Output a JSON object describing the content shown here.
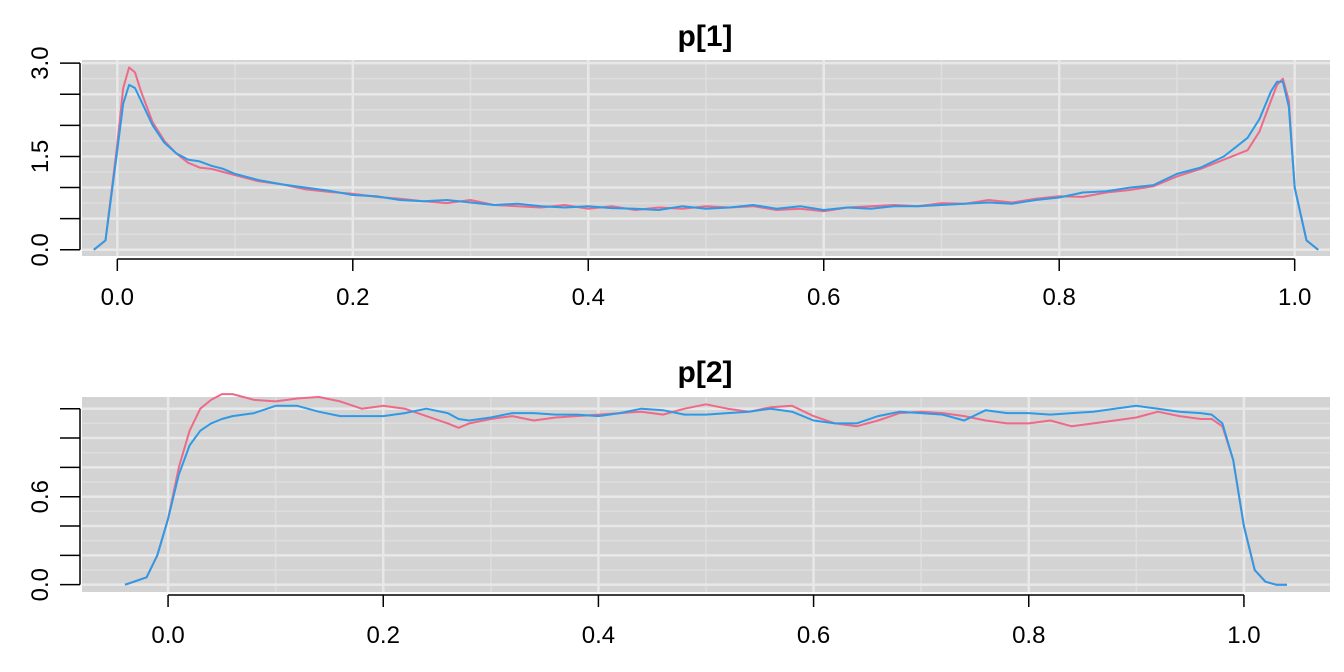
{
  "colors": {
    "panel_background": "#d3d3d3",
    "grid_major": "#e8e8e8",
    "grid_minor": "#dedede",
    "chain1": "#ee6a88",
    "chain2": "#2e9ae6"
  },
  "chart_data": [
    {
      "type": "line",
      "title": "p[1]",
      "xlabel": "",
      "ylabel": "",
      "xlim": [
        -0.03,
        1.03
      ],
      "ylim": [
        -0.1,
        3.05
      ],
      "x_ticks": [
        0.0,
        0.2,
        0.4,
        0.6,
        0.8,
        1.0
      ],
      "x_tick_labels": [
        "0.0",
        "0.2",
        "0.4",
        "0.6",
        "0.8",
        "1.0"
      ],
      "y_ticks": [
        0.0,
        0.5,
        1.0,
        1.5,
        2.0,
        2.5,
        3.0
      ],
      "y_tick_labels": [
        "0.0",
        "",
        "",
        "1.5",
        "",
        "",
        "3.0"
      ],
      "grid": true,
      "series": [
        {
          "color": "#ee6a88",
          "x": [
            -0.02,
            -0.01,
            0.0,
            0.005,
            0.01,
            0.015,
            0.02,
            0.03,
            0.04,
            0.05,
            0.06,
            0.07,
            0.08,
            0.09,
            0.1,
            0.12,
            0.14,
            0.16,
            0.18,
            0.2,
            0.22,
            0.24,
            0.26,
            0.28,
            0.3,
            0.32,
            0.34,
            0.36,
            0.38,
            0.4,
            0.42,
            0.44,
            0.46,
            0.48,
            0.5,
            0.52,
            0.54,
            0.56,
            0.58,
            0.6,
            0.62,
            0.64,
            0.66,
            0.68,
            0.7,
            0.72,
            0.74,
            0.76,
            0.78,
            0.8,
            0.82,
            0.84,
            0.86,
            0.88,
            0.9,
            0.92,
            0.94,
            0.96,
            0.97,
            0.98,
            0.985,
            0.99,
            0.995,
            1.0,
            1.01,
            1.02
          ],
          "y": [
            0.0,
            0.15,
            1.7,
            2.6,
            2.93,
            2.85,
            2.55,
            2.05,
            1.75,
            1.55,
            1.4,
            1.32,
            1.3,
            1.25,
            1.2,
            1.1,
            1.05,
            0.97,
            0.93,
            0.9,
            0.85,
            0.82,
            0.78,
            0.75,
            0.8,
            0.72,
            0.7,
            0.68,
            0.72,
            0.66,
            0.7,
            0.64,
            0.68,
            0.66,
            0.7,
            0.68,
            0.7,
            0.64,
            0.66,
            0.62,
            0.68,
            0.7,
            0.72,
            0.7,
            0.75,
            0.74,
            0.8,
            0.76,
            0.82,
            0.86,
            0.85,
            0.92,
            0.96,
            1.02,
            1.18,
            1.3,
            1.45,
            1.6,
            1.9,
            2.4,
            2.65,
            2.75,
            2.4,
            1.0,
            0.15,
            0.0
          ]
        },
        {
          "color": "#2e9ae6",
          "x": [
            -0.02,
            -0.01,
            0.0,
            0.005,
            0.01,
            0.015,
            0.02,
            0.03,
            0.04,
            0.05,
            0.06,
            0.07,
            0.08,
            0.09,
            0.1,
            0.12,
            0.14,
            0.16,
            0.18,
            0.2,
            0.22,
            0.24,
            0.26,
            0.28,
            0.3,
            0.32,
            0.34,
            0.36,
            0.38,
            0.4,
            0.42,
            0.44,
            0.46,
            0.48,
            0.5,
            0.52,
            0.54,
            0.56,
            0.58,
            0.6,
            0.62,
            0.64,
            0.66,
            0.68,
            0.7,
            0.72,
            0.74,
            0.76,
            0.78,
            0.8,
            0.82,
            0.84,
            0.86,
            0.88,
            0.9,
            0.92,
            0.94,
            0.96,
            0.97,
            0.98,
            0.985,
            0.99,
            0.995,
            1.0,
            1.01,
            1.02
          ],
          "y": [
            0.0,
            0.15,
            1.6,
            2.35,
            2.65,
            2.6,
            2.4,
            2.0,
            1.72,
            1.55,
            1.45,
            1.42,
            1.35,
            1.3,
            1.22,
            1.12,
            1.05,
            1.0,
            0.95,
            0.88,
            0.86,
            0.8,
            0.78,
            0.8,
            0.76,
            0.72,
            0.74,
            0.7,
            0.68,
            0.7,
            0.67,
            0.66,
            0.64,
            0.7,
            0.66,
            0.68,
            0.72,
            0.66,
            0.7,
            0.64,
            0.68,
            0.66,
            0.7,
            0.7,
            0.72,
            0.74,
            0.76,
            0.74,
            0.8,
            0.84,
            0.92,
            0.94,
            1.0,
            1.04,
            1.22,
            1.32,
            1.5,
            1.8,
            2.1,
            2.55,
            2.7,
            2.7,
            2.3,
            1.0,
            0.15,
            0.0
          ]
        }
      ]
    },
    {
      "type": "line",
      "title": "p[2]",
      "xlabel": "",
      "ylabel": "",
      "xlim": [
        -0.08,
        1.08
      ],
      "ylim": [
        -0.05,
        1.28
      ],
      "x_ticks": [
        0.0,
        0.2,
        0.4,
        0.6,
        0.8,
        1.0
      ],
      "x_tick_labels": [
        "0.0",
        "0.2",
        "0.4",
        "0.6",
        "0.8",
        "1.0"
      ],
      "y_ticks": [
        0.0,
        0.2,
        0.4,
        0.6,
        0.8,
        1.0,
        1.2
      ],
      "y_tick_labels": [
        "0.0",
        "",
        "",
        "0.6",
        "",
        "",
        ""
      ],
      "grid": true,
      "series": [
        {
          "color": "#ee6a88",
          "x": [
            -0.04,
            -0.02,
            -0.01,
            0.0,
            0.01,
            0.02,
            0.03,
            0.04,
            0.05,
            0.06,
            0.08,
            0.1,
            0.12,
            0.14,
            0.16,
            0.18,
            0.2,
            0.22,
            0.24,
            0.26,
            0.27,
            0.28,
            0.3,
            0.32,
            0.34,
            0.36,
            0.38,
            0.4,
            0.42,
            0.44,
            0.46,
            0.48,
            0.5,
            0.52,
            0.54,
            0.56,
            0.58,
            0.6,
            0.62,
            0.64,
            0.66,
            0.68,
            0.7,
            0.72,
            0.74,
            0.76,
            0.78,
            0.8,
            0.82,
            0.84,
            0.86,
            0.88,
            0.9,
            0.92,
            0.94,
            0.96,
            0.97,
            0.98,
            0.99,
            1.0,
            1.01,
            1.02,
            1.03,
            1.04
          ],
          "y": [
            0.0,
            0.05,
            0.2,
            0.45,
            0.8,
            1.05,
            1.2,
            1.26,
            1.3,
            1.3,
            1.26,
            1.25,
            1.27,
            1.28,
            1.25,
            1.2,
            1.22,
            1.2,
            1.15,
            1.1,
            1.07,
            1.1,
            1.13,
            1.15,
            1.12,
            1.14,
            1.15,
            1.16,
            1.17,
            1.18,
            1.16,
            1.2,
            1.23,
            1.2,
            1.18,
            1.21,
            1.22,
            1.15,
            1.1,
            1.08,
            1.12,
            1.17,
            1.18,
            1.17,
            1.15,
            1.12,
            1.1,
            1.1,
            1.12,
            1.08,
            1.1,
            1.12,
            1.14,
            1.18,
            1.15,
            1.13,
            1.13,
            1.08,
            0.85,
            0.4,
            0.1,
            0.02,
            0.0,
            0.0
          ]
        },
        {
          "color": "#2e9ae6",
          "x": [
            -0.04,
            -0.02,
            -0.01,
            0.0,
            0.01,
            0.02,
            0.03,
            0.04,
            0.05,
            0.06,
            0.08,
            0.1,
            0.12,
            0.14,
            0.16,
            0.18,
            0.2,
            0.22,
            0.24,
            0.26,
            0.27,
            0.28,
            0.3,
            0.32,
            0.34,
            0.36,
            0.38,
            0.4,
            0.42,
            0.44,
            0.46,
            0.48,
            0.5,
            0.52,
            0.54,
            0.56,
            0.58,
            0.6,
            0.62,
            0.64,
            0.66,
            0.68,
            0.7,
            0.72,
            0.74,
            0.76,
            0.78,
            0.8,
            0.82,
            0.84,
            0.86,
            0.88,
            0.9,
            0.92,
            0.94,
            0.96,
            0.97,
            0.98,
            0.99,
            1.0,
            1.01,
            1.02,
            1.03,
            1.04
          ],
          "y": [
            0.0,
            0.05,
            0.2,
            0.45,
            0.75,
            0.95,
            1.05,
            1.1,
            1.13,
            1.15,
            1.17,
            1.22,
            1.22,
            1.18,
            1.15,
            1.15,
            1.15,
            1.17,
            1.2,
            1.17,
            1.13,
            1.12,
            1.14,
            1.17,
            1.17,
            1.16,
            1.16,
            1.15,
            1.17,
            1.2,
            1.19,
            1.16,
            1.16,
            1.17,
            1.18,
            1.2,
            1.18,
            1.12,
            1.1,
            1.1,
            1.15,
            1.18,
            1.17,
            1.16,
            1.12,
            1.19,
            1.17,
            1.17,
            1.16,
            1.17,
            1.18,
            1.2,
            1.22,
            1.2,
            1.18,
            1.17,
            1.16,
            1.1,
            0.85,
            0.4,
            0.1,
            0.02,
            0.0,
            0.0
          ]
        }
      ]
    }
  ]
}
